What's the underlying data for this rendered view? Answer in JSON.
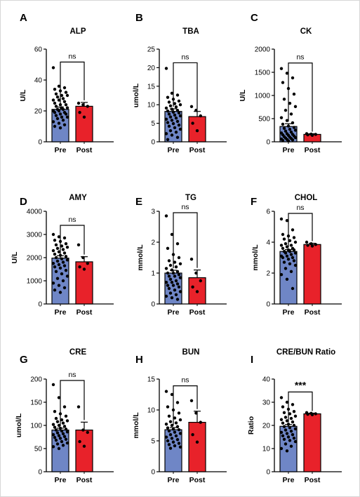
{
  "chart_data": [
    {
      "type": "bar",
      "panel_letter": "A",
      "title": "ALP",
      "ylabel": "U/L",
      "ylim": [
        0,
        60
      ],
      "yticks": [
        0,
        20,
        40,
        60
      ],
      "categories": [
        "Pre",
        "Post"
      ],
      "values": [
        21,
        23
      ],
      "errors": [
        1.5,
        2.5
      ],
      "significance": "ns",
      "points": [
        [
          48,
          36,
          35,
          34,
          33,
          32,
          31,
          30,
          30,
          29,
          28,
          27,
          27,
          26,
          25,
          24,
          24,
          23,
          22,
          22,
          21,
          21,
          20,
          20,
          19,
          19,
          18,
          18,
          17,
          16,
          16,
          15,
          14,
          13,
          12,
          11,
          10,
          9
        ],
        [
          25,
          24,
          23,
          19,
          16
        ]
      ],
      "colors": [
        "#6f86c6",
        "#e8222a"
      ]
    },
    {
      "type": "bar",
      "panel_letter": "B",
      "title": "TBA",
      "ylabel": "umol/L",
      "ylim": [
        0,
        25
      ],
      "yticks": [
        0,
        5,
        10,
        15,
        20,
        25
      ],
      "categories": [
        "Pre",
        "Post"
      ],
      "values": [
        8.2,
        6.8
      ],
      "errors": [
        0.7,
        1.4
      ],
      "significance": "ns",
      "points": [
        [
          19.8,
          13.1,
          12.6,
          12.0,
          11.5,
          11.0,
          10.7,
          10.3,
          10.0,
          9.7,
          9.4,
          9.1,
          8.8,
          8.5,
          8.3,
          8.0,
          7.8,
          7.5,
          7.2,
          7.0,
          6.7,
          6.4,
          6.1,
          5.8,
          5.5,
          5.2,
          4.9,
          4.5,
          4.2,
          3.8,
          3.4,
          3.0,
          2.6,
          2.2,
          1.8,
          1.2,
          0.6
        ],
        [
          9.5,
          8.5,
          7.0,
          5.0,
          3.0
        ]
      ],
      "colors": [
        "#6f86c6",
        "#e8222a"
      ]
    },
    {
      "type": "bar",
      "panel_letter": "C",
      "title": "CK",
      "ylabel": "U/L",
      "ylim": [
        0,
        2000
      ],
      "yticks": [
        0,
        500,
        1000,
        1500,
        2000
      ],
      "categories": [
        "Pre",
        "Post"
      ],
      "values": [
        330,
        160
      ],
      "errors": [
        60,
        15
      ],
      "significance": "ns",
      "points": [
        [
          1580,
          1480,
          1380,
          1280,
          1150,
          1030,
          920,
          830,
          760,
          680,
          600,
          520,
          460,
          410,
          380,
          340,
          310,
          290,
          270,
          250,
          230,
          210,
          190,
          175,
          160,
          150,
          140,
          125,
          110,
          100,
          90,
          80,
          70,
          60,
          50,
          40,
          30,
          20
        ],
        [
          175,
          165,
          160,
          150,
          140
        ]
      ],
      "colors": [
        "#6f86c6",
        "#e8222a"
      ]
    },
    {
      "type": "bar",
      "panel_letter": "D",
      "title": "AMY",
      "ylabel": "U/L",
      "ylim": [
        0,
        4000
      ],
      "yticks": [
        0,
        1000,
        2000,
        3000,
        4000
      ],
      "categories": [
        "Pre",
        "Post"
      ],
      "values": [
        1980,
        1820
      ],
      "errors": [
        100,
        220
      ],
      "significance": "ns",
      "points": [
        [
          3000,
          2900,
          2850,
          2750,
          2700,
          2600,
          2550,
          2500,
          2450,
          2400,
          2350,
          2300,
          2250,
          2200,
          2150,
          2100,
          2050,
          2000,
          1950,
          1900,
          1850,
          1800,
          1750,
          1700,
          1650,
          1600,
          1550,
          1450,
          1400,
          1300,
          1200,
          1100,
          1000,
          900,
          800,
          700,
          600,
          500
        ],
        [
          2550,
          2000,
          1750,
          1600,
          1500
        ]
      ],
      "colors": [
        "#6f86c6",
        "#e8222a"
      ]
    },
    {
      "type": "bar",
      "panel_letter": "E",
      "title": "TG",
      "ylabel": "mmol/L",
      "ylim": [
        0,
        3
      ],
      "yticks": [
        0,
        1,
        2,
        3
      ],
      "categories": [
        "Pre",
        "Post"
      ],
      "values": [
        1.0,
        0.85
      ],
      "errors": [
        0.09,
        0.25
      ],
      "significance": "ns",
      "points": [
        [
          2.85,
          2.25,
          1.95,
          1.8,
          1.6,
          1.5,
          1.4,
          1.35,
          1.3,
          1.25,
          1.2,
          1.15,
          1.1,
          1.05,
          1.0,
          1.0,
          0.95,
          0.9,
          0.9,
          0.85,
          0.8,
          0.75,
          0.7,
          0.7,
          0.65,
          0.6,
          0.6,
          0.55,
          0.5,
          0.45,
          0.4,
          0.35,
          0.3,
          0.25,
          0.2,
          0.15
        ],
        [
          1.45,
          1.0,
          0.75,
          0.55,
          0.4
        ]
      ],
      "colors": [
        "#6f86c6",
        "#e8222a"
      ]
    },
    {
      "type": "bar",
      "panel_letter": "F",
      "title": "CHOL",
      "ylabel": "mmol/L",
      "ylim": [
        0,
        6
      ],
      "yticks": [
        0,
        2,
        4,
        6
      ],
      "categories": [
        "Pre",
        "Post"
      ],
      "values": [
        3.4,
        3.85
      ],
      "errors": [
        0.12,
        0.08
      ],
      "significance": "ns",
      "points": [
        [
          5.5,
          5.4,
          4.8,
          4.5,
          4.4,
          4.3,
          4.2,
          4.1,
          4.0,
          3.9,
          3.8,
          3.8,
          3.7,
          3.6,
          3.6,
          3.5,
          3.5,
          3.4,
          3.4,
          3.3,
          3.3,
          3.2,
          3.1,
          3.1,
          3.0,
          3.0,
          2.9,
          2.8,
          2.7,
          2.6,
          2.5,
          2.3,
          2.1,
          1.9,
          1.6,
          1.0
        ],
        [
          4.0,
          3.9,
          3.85,
          3.8,
          3.75
        ]
      ],
      "colors": [
        "#6f86c6",
        "#e8222a"
      ]
    },
    {
      "type": "bar",
      "panel_letter": "G",
      "title": "CRE",
      "ylabel": "umol/L",
      "ylim": [
        0,
        200
      ],
      "yticks": [
        0,
        50,
        100,
        150,
        200
      ],
      "categories": [
        "Pre",
        "Post"
      ],
      "values": [
        90,
        90
      ],
      "errors": [
        4,
        17
      ],
      "significance": "ns",
      "points": [
        [
          188,
          160,
          140,
          130,
          125,
          120,
          115,
          112,
          110,
          108,
          105,
          102,
          100,
          98,
          96,
          94,
          92,
          90,
          88,
          86,
          84,
          82,
          80,
          78,
          76,
          74,
          72,
          70,
          68,
          65,
          62,
          60,
          57,
          54,
          50
        ],
        [
          140,
          90,
          85,
          65,
          55
        ]
      ],
      "colors": [
        "#6f86c6",
        "#e8222a"
      ]
    },
    {
      "type": "bar",
      "panel_letter": "H",
      "title": "BUN",
      "ylabel": "mmol/L",
      "ylim": [
        0,
        15
      ],
      "yticks": [
        0,
        5,
        10,
        15
      ],
      "categories": [
        "Pre",
        "Post"
      ],
      "values": [
        6.8,
        8.0
      ],
      "errors": [
        0.35,
        1.8
      ],
      "significance": "ns",
      "points": [
        [
          13.0,
          12.5,
          11.2,
          10.5,
          10.0,
          9.5,
          9.0,
          8.7,
          8.4,
          8.1,
          7.9,
          7.7,
          7.5,
          7.3,
          7.1,
          6.9,
          6.8,
          6.6,
          6.4,
          6.2,
          6.0,
          5.8,
          5.6,
          5.4,
          5.2,
          5.0,
          4.8,
          4.6,
          4.4,
          4.2,
          4.0,
          3.8
        ],
        [
          11.5,
          9.5,
          8.0,
          6.0,
          4.8
        ]
      ],
      "colors": [
        "#6f86c6",
        "#e8222a"
      ]
    },
    {
      "type": "bar",
      "panel_letter": "I",
      "title": "CRE/BUN Ratio",
      "ylabel": "Ratio",
      "ylim": [
        0,
        40
      ],
      "yticks": [
        0,
        10,
        20,
        30,
        40
      ],
      "categories": [
        "Pre",
        "Post"
      ],
      "values": [
        19.6,
        25.0
      ],
      "errors": [
        0.8,
        0.3
      ],
      "significance": "***",
      "points": [
        [
          32,
          30,
          29,
          28,
          27,
          26,
          25.5,
          25,
          24,
          23.5,
          23,
          22.5,
          22,
          21.5,
          21,
          20.5,
          20,
          19.5,
          19,
          18.5,
          18,
          17.5,
          17,
          16.5,
          16,
          15.5,
          15,
          14.5,
          14,
          13.5,
          13,
          12,
          11,
          10,
          9
        ],
        [
          25.5,
          25.2,
          25.0,
          24.8,
          24.6
        ]
      ],
      "colors": [
        "#6f86c6",
        "#e8222a"
      ]
    }
  ]
}
